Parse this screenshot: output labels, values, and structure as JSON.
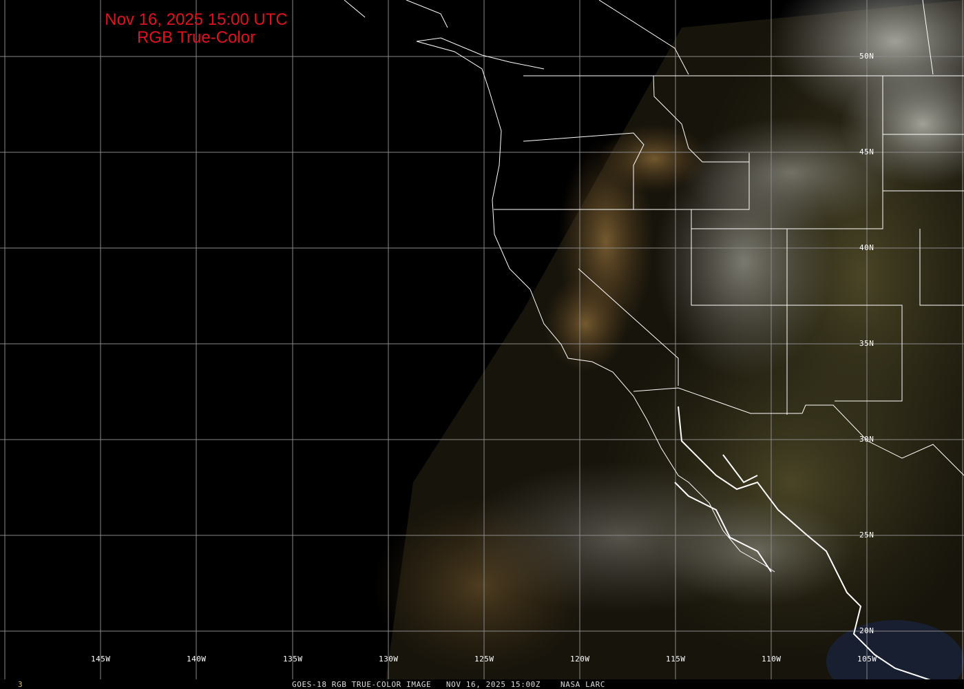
{
  "title": {
    "line1": "Nov 16, 2025 15:00 UTC",
    "line2": "RGB True-Color"
  },
  "footer": {
    "caption": "GOES-18 RGB TRUE-COLOR IMAGE   NOV 16, 2025 15:00Z    NASA LARC",
    "frame_number": "3"
  },
  "longitude_labels": [
    "145W",
    "140W",
    "135W",
    "130W",
    "125W",
    "120W",
    "115W",
    "110W",
    "105W"
  ],
  "latitude_labels": [
    "50N",
    "45N",
    "40N",
    "35N",
    "30N",
    "25N",
    "20N"
  ],
  "colors": {
    "title": "#e0141e",
    "gridlines": "#8a8a8a",
    "borders": "#ffffff",
    "background": "#000000"
  }
}
